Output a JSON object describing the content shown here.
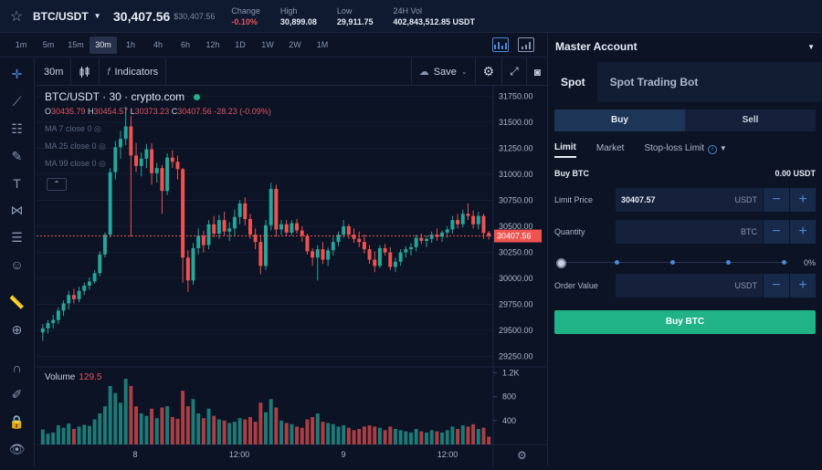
{
  "header": {
    "pair": "BTC/USDT",
    "price": "30,407.56",
    "price_sub": "$30,407.56",
    "stats": [
      {
        "label": "Change",
        "value": "-0.10%",
        "negative": true
      },
      {
        "label": "High",
        "value": "30,899.08",
        "negative": false
      },
      {
        "label": "Low",
        "value": "29,911.75",
        "negative": false
      },
      {
        "label": "24H Vol",
        "value": "402,843,512.85 USDT",
        "negative": false
      }
    ]
  },
  "timeframes": [
    "1m",
    "5m",
    "15m",
    "30m",
    "1h",
    "4h",
    "6h",
    "12h",
    "1D",
    "1W",
    "2W",
    "1M"
  ],
  "active_timeframe": "30m",
  "chart_toolbar": {
    "interval": "30m",
    "fx": "f",
    "indicators": "Indicators",
    "save": "Save"
  },
  "left_tools": [
    "crosshair-icon",
    "trend-line-icon",
    "fib-icon",
    "brush-icon",
    "text-icon",
    "pattern-icon",
    "forecast-icon",
    "emoji-icon",
    "ruler-icon",
    "zoom-icon",
    "magnet-icon",
    "lock-draw-icon",
    "lock-icon",
    "eye-icon"
  ],
  "chart": {
    "legend_pair": "BTC/USDT",
    "legend_interval": "30",
    "legend_source": "crypto.com",
    "ohlc": {
      "o": "30435.79",
      "h": "30454.57",
      "l": "30373.23",
      "c": "30407.56",
      "chg": "-28.23 (-0.09%)"
    },
    "ma": [
      "MA 7 close 0",
      "MA 25 close 0",
      "MA 99 close 0"
    ],
    "volume_label": "Volume",
    "volume_value": "129.5",
    "price_ticks": [
      "31750.00",
      "31500.00",
      "31250.00",
      "31000.00",
      "30750.00",
      "30500.00",
      "30250.00",
      "30000.00",
      "29750.00",
      "29500.00",
      "29250.00"
    ],
    "last_price": "30407.56",
    "volume_ticks": [
      "1.2K",
      "800",
      "400"
    ],
    "time_ticks": [
      "8",
      "12:00",
      "9",
      "12:00"
    ]
  },
  "chart_data": {
    "type": "candlestick",
    "ylim": [
      29150,
      31850
    ],
    "volume_ylim": [
      0,
      1300
    ],
    "candles": [
      [
        29480,
        29560,
        29400,
        29520,
        250
      ],
      [
        29520,
        29600,
        29470,
        29570,
        180
      ],
      [
        29570,
        29650,
        29520,
        29600,
        200
      ],
      [
        29600,
        29720,
        29560,
        29690,
        320
      ],
      [
        29690,
        29790,
        29640,
        29760,
        280
      ],
      [
        29760,
        29880,
        29700,
        29840,
        350
      ],
      [
        29840,
        29900,
        29760,
        29800,
        260
      ],
      [
        29800,
        29920,
        29770,
        29880,
        300
      ],
      [
        29880,
        29960,
        29840,
        29930,
        330
      ],
      [
        29930,
        30010,
        29890,
        29970,
        310
      ],
      [
        29970,
        30080,
        29950,
        30050,
        420
      ],
      [
        30050,
        30260,
        30020,
        30230,
        520
      ],
      [
        30230,
        30440,
        30200,
        30420,
        640
      ],
      [
        30420,
        31060,
        30390,
        31020,
        980
      ],
      [
        31020,
        31320,
        30950,
        31260,
        860
      ],
      [
        31260,
        31420,
        31150,
        31340,
        700
      ],
      [
        31340,
        31650,
        31280,
        31460,
        1100
      ],
      [
        31460,
        31560,
        30400,
        31180,
        980
      ],
      [
        31180,
        31300,
        31020,
        31080,
        640
      ],
      [
        31080,
        31210,
        30980,
        31150,
        520
      ],
      [
        31150,
        31290,
        31060,
        31240,
        480
      ],
      [
        31240,
        31300,
        30900,
        31010,
        600
      ],
      [
        31010,
        31110,
        30920,
        31060,
        440
      ],
      [
        31060,
        31090,
        30620,
        30840,
        620
      ],
      [
        30840,
        31200,
        30800,
        31160,
        640
      ],
      [
        31160,
        31230,
        31060,
        31120,
        460
      ],
      [
        31120,
        31180,
        30950,
        31050,
        430
      ],
      [
        31050,
        31060,
        29960,
        30200,
        900
      ],
      [
        30200,
        30270,
        29870,
        29980,
        640
      ],
      [
        29980,
        30340,
        29940,
        30290,
        760
      ],
      [
        30290,
        30480,
        30230,
        30410,
        520
      ],
      [
        30410,
        30460,
        30250,
        30320,
        440
      ],
      [
        30320,
        30560,
        30280,
        30520,
        600
      ],
      [
        30520,
        30600,
        30390,
        30430,
        480
      ],
      [
        30430,
        30610,
        30380,
        30560,
        420
      ],
      [
        30560,
        30640,
        30410,
        30450,
        400
      ],
      [
        30450,
        30540,
        30360,
        30480,
        360
      ],
      [
        30480,
        30660,
        30400,
        30590,
        380
      ],
      [
        30590,
        30750,
        30520,
        30720,
        440
      ],
      [
        30720,
        30780,
        30510,
        30570,
        420
      ],
      [
        30570,
        30620,
        30380,
        30420,
        460
      ],
      [
        30420,
        30480,
        30280,
        30350,
        380
      ],
      [
        30350,
        30420,
        30040,
        30120,
        700
      ],
      [
        30120,
        30560,
        30080,
        30510,
        540
      ],
      [
        30510,
        30920,
        30460,
        30860,
        760
      ],
      [
        30860,
        30900,
        30400,
        30470,
        620
      ],
      [
        30470,
        30560,
        30420,
        30520,
        400
      ],
      [
        30520,
        30560,
        30410,
        30440,
        360
      ],
      [
        30440,
        30560,
        30410,
        30530,
        340
      ],
      [
        30530,
        30570,
        30430,
        30460,
        300
      ],
      [
        30460,
        30500,
        30350,
        30410,
        280
      ],
      [
        30410,
        30430,
        30230,
        30260,
        420
      ],
      [
        30260,
        30290,
        30120,
        30200,
        460
      ],
      [
        30200,
        30320,
        29980,
        30280,
        520
      ],
      [
        30280,
        30350,
        30140,
        30180,
        380
      ],
      [
        30180,
        30300,
        30120,
        30270,
        360
      ],
      [
        30270,
        30400,
        30220,
        30350,
        340
      ],
      [
        30350,
        30450,
        30310,
        30420,
        300
      ],
      [
        30420,
        30560,
        30390,
        30500,
        320
      ],
      [
        30500,
        30520,
        30380,
        30420,
        280
      ],
      [
        30420,
        30480,
        30340,
        30380,
        240
      ],
      [
        30380,
        30450,
        30300,
        30350,
        260
      ],
      [
        30350,
        30420,
        30240,
        30280,
        300
      ],
      [
        30280,
        30320,
        30140,
        30180,
        320
      ],
      [
        30180,
        30260,
        30060,
        30120,
        300
      ],
      [
        30120,
        30320,
        30100,
        30290,
        280
      ],
      [
        30290,
        30330,
        30220,
        30250,
        240
      ],
      [
        30250,
        30300,
        30080,
        30110,
        300
      ],
      [
        30110,
        30200,
        30060,
        30160,
        260
      ],
      [
        30160,
        30280,
        30120,
        30250,
        240
      ],
      [
        30250,
        30310,
        30200,
        30280,
        220
      ],
      [
        30280,
        30340,
        30220,
        30300,
        200
      ],
      [
        30300,
        30420,
        30260,
        30390,
        260
      ],
      [
        30390,
        30430,
        30330,
        30360,
        220
      ],
      [
        30360,
        30410,
        30300,
        30380,
        200
      ],
      [
        30380,
        30450,
        30340,
        30420,
        240
      ],
      [
        30420,
        30480,
        30360,
        30400,
        220
      ],
      [
        30400,
        30460,
        30350,
        30440,
        200
      ],
      [
        30440,
        30500,
        30390,
        30470,
        240
      ],
      [
        30470,
        30600,
        30430,
        30560,
        300
      ],
      [
        30560,
        30620,
        30480,
        30520,
        260
      ],
      [
        30520,
        30660,
        30490,
        30620,
        320
      ],
      [
        30620,
        30720,
        30560,
        30600,
        300
      ],
      [
        30600,
        30650,
        30480,
        30520,
        340
      ],
      [
        30520,
        30640,
        30470,
        30600,
        260
      ],
      [
        30600,
        30620,
        30380,
        30436,
        280
      ],
      [
        30436,
        30455,
        30373,
        30408,
        130
      ]
    ]
  },
  "trade_panel": {
    "account": "Master Account",
    "mode_tabs": [
      "Spot",
      "Spot Trading Bot"
    ],
    "buy_label": "Buy",
    "sell_label": "Sell",
    "order_types": [
      "Limit",
      "Market",
      "Stop-loss Limit"
    ],
    "buy_asset_label": "Buy BTC",
    "balance": "0.00 USDT",
    "limit_price_label": "Limit Price",
    "limit_price_value": "30407.57",
    "limit_price_unit": "USDT",
    "quantity_label": "Quantity",
    "quantity_unit": "BTC",
    "slider_pct": "0%",
    "order_value_label": "Order Value",
    "order_value_unit": "USDT",
    "submit_label": "Buy BTC"
  },
  "colors": {
    "up": "#26a69a",
    "down": "#ef5350",
    "accent": "#4d87d6",
    "buy": "#1fb386"
  }
}
